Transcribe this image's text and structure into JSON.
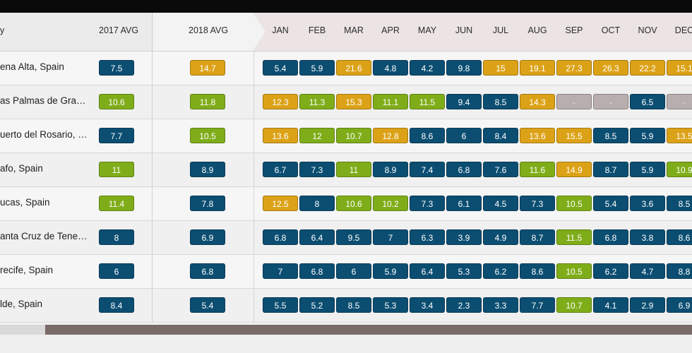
{
  "header": {
    "city": "y",
    "avg2017": "2017 AVG",
    "avg2018": "2018 AVG",
    "months": [
      "JAN",
      "FEB",
      "MAR",
      "APR",
      "MAY",
      "JUN",
      "JUL",
      "AUG",
      "SEP",
      "OCT",
      "NOV",
      "DEC"
    ]
  },
  "colors": {
    "blue": "#0c4e72",
    "green": "#7fad1a",
    "gold": "#dca217",
    "gray": "#b9aeae"
  },
  "rows": [
    {
      "city": "ena Alta, Spain",
      "avg2017": {
        "v": "7.5",
        "c": "blue"
      },
      "avg2018": {
        "v": "14.7",
        "c": "gold"
      },
      "months": [
        {
          "v": "5.4",
          "c": "blue"
        },
        {
          "v": "5.9",
          "c": "blue"
        },
        {
          "v": "21.6",
          "c": "gold"
        },
        {
          "v": "4.8",
          "c": "blue"
        },
        {
          "v": "4.2",
          "c": "blue"
        },
        {
          "v": "9.8",
          "c": "blue"
        },
        {
          "v": "15",
          "c": "gold"
        },
        {
          "v": "19.1",
          "c": "gold"
        },
        {
          "v": "27.3",
          "c": "gold"
        },
        {
          "v": "26.3",
          "c": "gold"
        },
        {
          "v": "22.2",
          "c": "gold"
        },
        {
          "v": "15.1",
          "c": "gold"
        }
      ]
    },
    {
      "city": "as Palmas de Gra…",
      "avg2017": {
        "v": "10.6",
        "c": "green"
      },
      "avg2018": {
        "v": "11.8",
        "c": "green"
      },
      "months": [
        {
          "v": "12.3",
          "c": "gold"
        },
        {
          "v": "11.3",
          "c": "green"
        },
        {
          "v": "15.3",
          "c": "gold"
        },
        {
          "v": "11.1",
          "c": "green"
        },
        {
          "v": "11.5",
          "c": "green"
        },
        {
          "v": "9.4",
          "c": "blue"
        },
        {
          "v": "8.5",
          "c": "blue"
        },
        {
          "v": "14.3",
          "c": "gold"
        },
        {
          "v": "-",
          "c": "gray"
        },
        {
          "v": "-",
          "c": "gray"
        },
        {
          "v": "6.5",
          "c": "blue"
        },
        {
          "v": "-",
          "c": "gray"
        }
      ]
    },
    {
      "city": "uerto del Rosario, …",
      "avg2017": {
        "v": "7.7",
        "c": "blue"
      },
      "avg2018": {
        "v": "10.5",
        "c": "green"
      },
      "months": [
        {
          "v": "13.6",
          "c": "gold"
        },
        {
          "v": "12",
          "c": "green"
        },
        {
          "v": "10.7",
          "c": "green"
        },
        {
          "v": "12.8",
          "c": "gold"
        },
        {
          "v": "8.6",
          "c": "blue"
        },
        {
          "v": "6",
          "c": "blue"
        },
        {
          "v": "8.4",
          "c": "blue"
        },
        {
          "v": "13.6",
          "c": "gold"
        },
        {
          "v": "15.5",
          "c": "gold"
        },
        {
          "v": "8.5",
          "c": "blue"
        },
        {
          "v": "5.9",
          "c": "blue"
        },
        {
          "v": "13.5",
          "c": "gold"
        }
      ]
    },
    {
      "city": "afo, Spain",
      "avg2017": {
        "v": "11",
        "c": "green"
      },
      "avg2018": {
        "v": "8.9",
        "c": "blue"
      },
      "months": [
        {
          "v": "6.7",
          "c": "blue"
        },
        {
          "v": "7.3",
          "c": "blue"
        },
        {
          "v": "11",
          "c": "green"
        },
        {
          "v": "8.9",
          "c": "blue"
        },
        {
          "v": "7.4",
          "c": "blue"
        },
        {
          "v": "6.8",
          "c": "blue"
        },
        {
          "v": "7.6",
          "c": "blue"
        },
        {
          "v": "11.6",
          "c": "green"
        },
        {
          "v": "14.9",
          "c": "gold"
        },
        {
          "v": "8.7",
          "c": "blue"
        },
        {
          "v": "5.9",
          "c": "blue"
        },
        {
          "v": "10.9",
          "c": "green"
        }
      ]
    },
    {
      "city": "ucas, Spain",
      "avg2017": {
        "v": "11.4",
        "c": "green"
      },
      "avg2018": {
        "v": "7.8",
        "c": "blue"
      },
      "months": [
        {
          "v": "12.5",
          "c": "gold"
        },
        {
          "v": "8",
          "c": "blue"
        },
        {
          "v": "10.6",
          "c": "green"
        },
        {
          "v": "10.2",
          "c": "green"
        },
        {
          "v": "7.3",
          "c": "blue"
        },
        {
          "v": "6.1",
          "c": "blue"
        },
        {
          "v": "4.5",
          "c": "blue"
        },
        {
          "v": "7.3",
          "c": "blue"
        },
        {
          "v": "10.5",
          "c": "green"
        },
        {
          "v": "5.4",
          "c": "blue"
        },
        {
          "v": "3.6",
          "c": "blue"
        },
        {
          "v": "8.5",
          "c": "blue"
        }
      ]
    },
    {
      "city": "anta Cruz de Tene…",
      "avg2017": {
        "v": "8",
        "c": "blue"
      },
      "avg2018": {
        "v": "6.9",
        "c": "blue"
      },
      "months": [
        {
          "v": "6.8",
          "c": "blue"
        },
        {
          "v": "6.4",
          "c": "blue"
        },
        {
          "v": "9.5",
          "c": "blue"
        },
        {
          "v": "7",
          "c": "blue"
        },
        {
          "v": "6.3",
          "c": "blue"
        },
        {
          "v": "3.9",
          "c": "blue"
        },
        {
          "v": "4.9",
          "c": "blue"
        },
        {
          "v": "8.7",
          "c": "blue"
        },
        {
          "v": "11.5",
          "c": "green"
        },
        {
          "v": "6.8",
          "c": "blue"
        },
        {
          "v": "3.8",
          "c": "blue"
        },
        {
          "v": "8.6",
          "c": "blue"
        }
      ]
    },
    {
      "city": "recife, Spain",
      "avg2017": {
        "v": "6",
        "c": "blue"
      },
      "avg2018": {
        "v": "6.8",
        "c": "blue"
      },
      "months": [
        {
          "v": "7",
          "c": "blue"
        },
        {
          "v": "6.8",
          "c": "blue"
        },
        {
          "v": "6",
          "c": "blue"
        },
        {
          "v": "5.9",
          "c": "blue"
        },
        {
          "v": "6.4",
          "c": "blue"
        },
        {
          "v": "5.3",
          "c": "blue"
        },
        {
          "v": "6.2",
          "c": "blue"
        },
        {
          "v": "8.6",
          "c": "blue"
        },
        {
          "v": "10.5",
          "c": "green"
        },
        {
          "v": "6.2",
          "c": "blue"
        },
        {
          "v": "4.7",
          "c": "blue"
        },
        {
          "v": "8.8",
          "c": "blue"
        }
      ]
    },
    {
      "city": "lde, Spain",
      "avg2017": {
        "v": "8.4",
        "c": "blue"
      },
      "avg2018": {
        "v": "5.4",
        "c": "blue"
      },
      "months": [
        {
          "v": "5.5",
          "c": "blue"
        },
        {
          "v": "5.2",
          "c": "blue"
        },
        {
          "v": "8.5",
          "c": "blue"
        },
        {
          "v": "5.3",
          "c": "blue"
        },
        {
          "v": "3.4",
          "c": "blue"
        },
        {
          "v": "2.3",
          "c": "blue"
        },
        {
          "v": "3.3",
          "c": "blue"
        },
        {
          "v": "7.7",
          "c": "blue"
        },
        {
          "v": "10.7",
          "c": "green"
        },
        {
          "v": "4.1",
          "c": "blue"
        },
        {
          "v": "2.9",
          "c": "blue"
        },
        {
          "v": "6.9",
          "c": "blue"
        }
      ]
    }
  ]
}
